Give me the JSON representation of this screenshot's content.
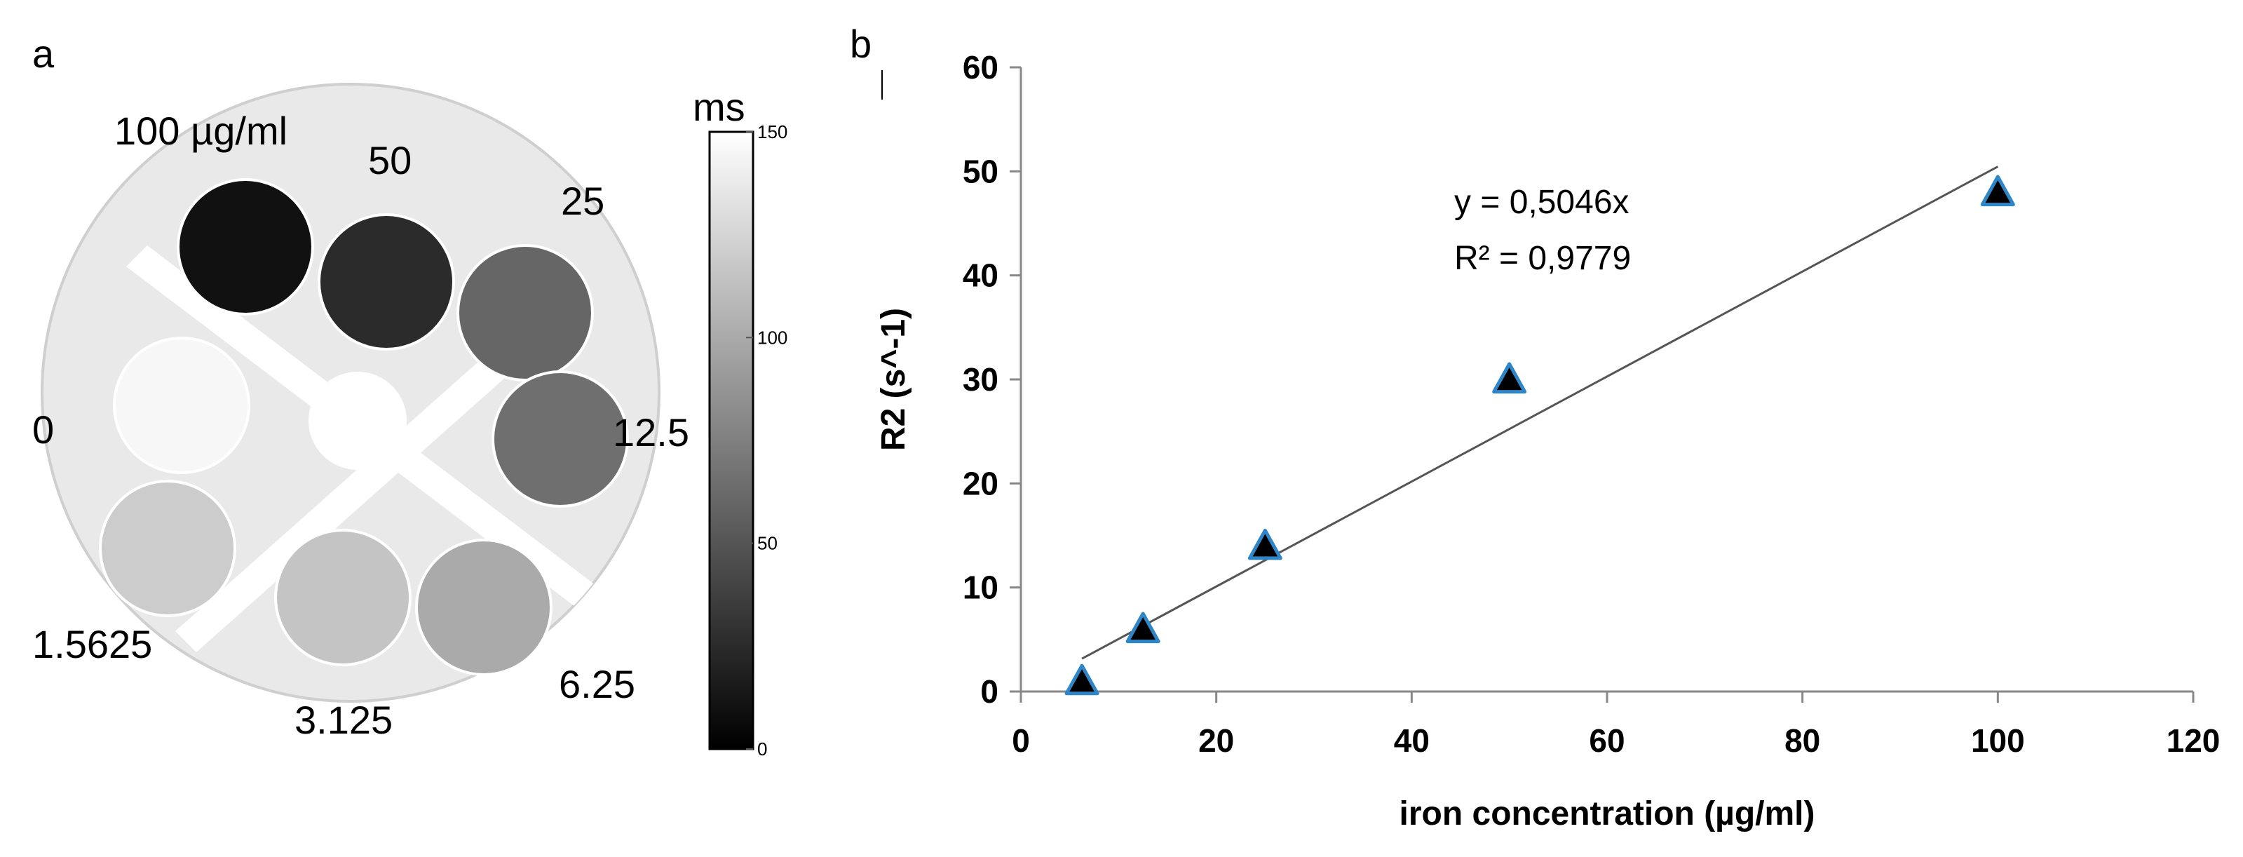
{
  "panel_a": {
    "label": "a",
    "concentration_labels": [
      "100 µg/ml",
      "50",
      "25",
      "12.5",
      "6.25",
      "3.125",
      "1.5625",
      "0"
    ],
    "colorbar": {
      "unit": "ms",
      "ticks": [
        "150",
        "100",
        "50",
        "0"
      ],
      "tick_values": [
        150,
        100,
        50,
        0
      ],
      "min": 0,
      "max": 150
    },
    "wells": [
      {
        "concentration": "100",
        "t2_ms": 10
      },
      {
        "concentration": "50",
        "t2_ms": 25
      },
      {
        "concentration": "25",
        "t2_ms": 60
      },
      {
        "concentration": "12.5",
        "t2_ms": 65
      },
      {
        "concentration": "6.25",
        "t2_ms": 100
      },
      {
        "concentration": "3.125",
        "t2_ms": 115
      },
      {
        "concentration": "1.5625",
        "t2_ms": 120
      },
      {
        "concentration": "0",
        "t2_ms": 145
      }
    ]
  },
  "chart_data": {
    "panel_label": "b",
    "type": "scatter",
    "xlabel": "iron concentration (µg/ml)",
    "ylabel": "R2 (s^-1)",
    "xlim": [
      0,
      120
    ],
    "ylim": [
      0,
      60
    ],
    "xticks": [
      0,
      20,
      40,
      60,
      80,
      100,
      120
    ],
    "yticks": [
      0,
      10,
      20,
      30,
      40,
      50,
      60
    ],
    "x_tick_labels": [
      "0",
      "20",
      "40",
      "60",
      "80",
      "100",
      "120"
    ],
    "y_tick_labels": [
      "0",
      "10",
      "20",
      "30",
      "40",
      "50",
      "60"
    ],
    "grid": false,
    "points": [
      {
        "x": 6.25,
        "y": 1
      },
      {
        "x": 12.5,
        "y": 6
      },
      {
        "x": 25,
        "y": 14
      },
      {
        "x": 50,
        "y": 30
      },
      {
        "x": 100,
        "y": 48
      }
    ],
    "trendline": {
      "slope": 0.5046,
      "x_range": [
        6.25,
        100
      ]
    },
    "annotations": [
      "y = 0,5046x",
      "R² = 0,9779"
    ],
    "colors": {
      "marker_fill": "#000000",
      "marker_edge": "#2e86c8",
      "line": "#555555",
      "axis": "#888888"
    }
  }
}
